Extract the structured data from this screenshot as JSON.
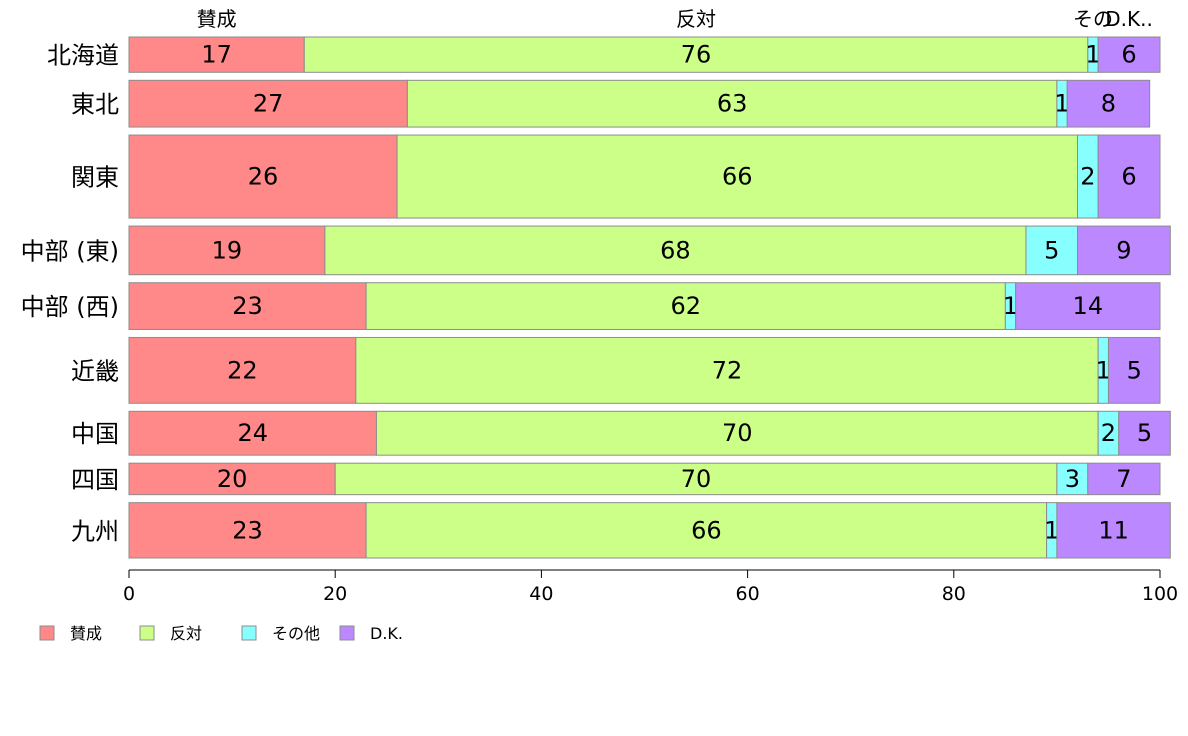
{
  "chart_data": {
    "type": "bar",
    "orientation": "horizontal",
    "stacked": true,
    "categories": [
      "北海道",
      "東北",
      "関東",
      "中部 (東)",
      "中部 (西)",
      "近畿",
      "中国",
      "四国",
      "九州"
    ],
    "series": [
      {
        "name": "賛成",
        "top_label": "賛成",
        "color": "#ff8888",
        "values": [
          17,
          27,
          26,
          19,
          23,
          22,
          24,
          20,
          23
        ]
      },
      {
        "name": "反対",
        "top_label": "反対",
        "color": "#ccff88",
        "values": [
          76,
          63,
          66,
          68,
          62,
          72,
          70,
          70,
          66
        ]
      },
      {
        "name": "その他",
        "top_label": "その",
        "color": "#88ffff",
        "values": [
          1,
          1,
          2,
          5,
          1,
          1,
          2,
          3,
          1
        ]
      },
      {
        "name": "D.K.",
        "top_label": "D.K..",
        "color": "#bb88ff",
        "values": [
          6,
          8,
          6,
          9,
          14,
          5,
          5,
          7,
          11
        ]
      }
    ],
    "row_weights": [
      37,
      49,
      87,
      51,
      49,
      69,
      46,
      33,
      58
    ],
    "xlim": [
      0,
      100
    ],
    "xticks": [
      "0",
      "20",
      "40",
      "60",
      "80",
      "100"
    ],
    "grid": false,
    "legend_position": "bottom-left"
  }
}
